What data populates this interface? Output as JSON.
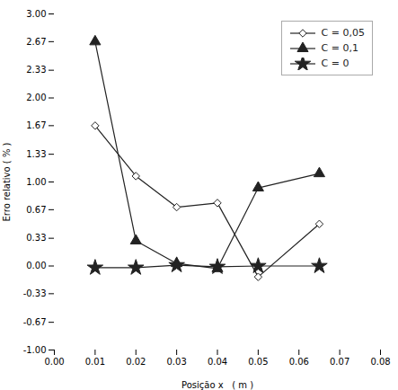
{
  "chart_data": {
    "type": "line",
    "xlabel": "Posição x   ( m )",
    "ylabel": "Erro relativo ( % )",
    "x": [
      0.01,
      0.02,
      0.03,
      0.04,
      0.05,
      0.065
    ],
    "series": [
      {
        "name": "C = 0,05",
        "color": "#222222",
        "marker": "diamond",
        "line_style": "solid",
        "values": [
          1.67,
          1.07,
          0.7,
          0.75,
          -0.13,
          0.5
        ]
      },
      {
        "name": "C = 0,1",
        "color": "#222222",
        "marker": "triangle",
        "line_style": "solid",
        "values": [
          2.67,
          0.3,
          0.03,
          -0.03,
          0.93,
          1.1
        ]
      },
      {
        "name": "C = 0",
        "color": "#222222",
        "marker": "star",
        "line_style": "solid",
        "values": [
          -0.02,
          -0.02,
          0.01,
          -0.01,
          0.0,
          0.0
        ]
      }
    ],
    "xlim": [
      0.0,
      0.08
    ],
    "ylim": [
      -1.0,
      3.0
    ],
    "xticks": [
      {
        "value": 0.0,
        "label": "0.00"
      },
      0.01,
      {
        "value": 0.02,
        "label": "0.02"
      },
      0.03,
      {
        "value": 0.04,
        "label": "0.04"
      },
      0.05,
      {
        "value": 0.06,
        "label": "0.06"
      },
      0.07,
      {
        "value": 0.08,
        "label": "0.08"
      }
    ],
    "yticks": [
      {
        "value": -1.0,
        "label": "-1.00"
      },
      -0.67,
      -0.33,
      {
        "value": 0.0,
        "label": "0.00"
      },
      0.33,
      0.67,
      {
        "value": 1.0,
        "label": "1.00"
      },
      1.33,
      1.67,
      {
        "value": 2.0,
        "label": "2.00"
      },
      2.33,
      2.67,
      {
        "value": 3.0,
        "label": "3.00"
      }
    ],
    "legend": "upper right",
    "grid": false
  }
}
